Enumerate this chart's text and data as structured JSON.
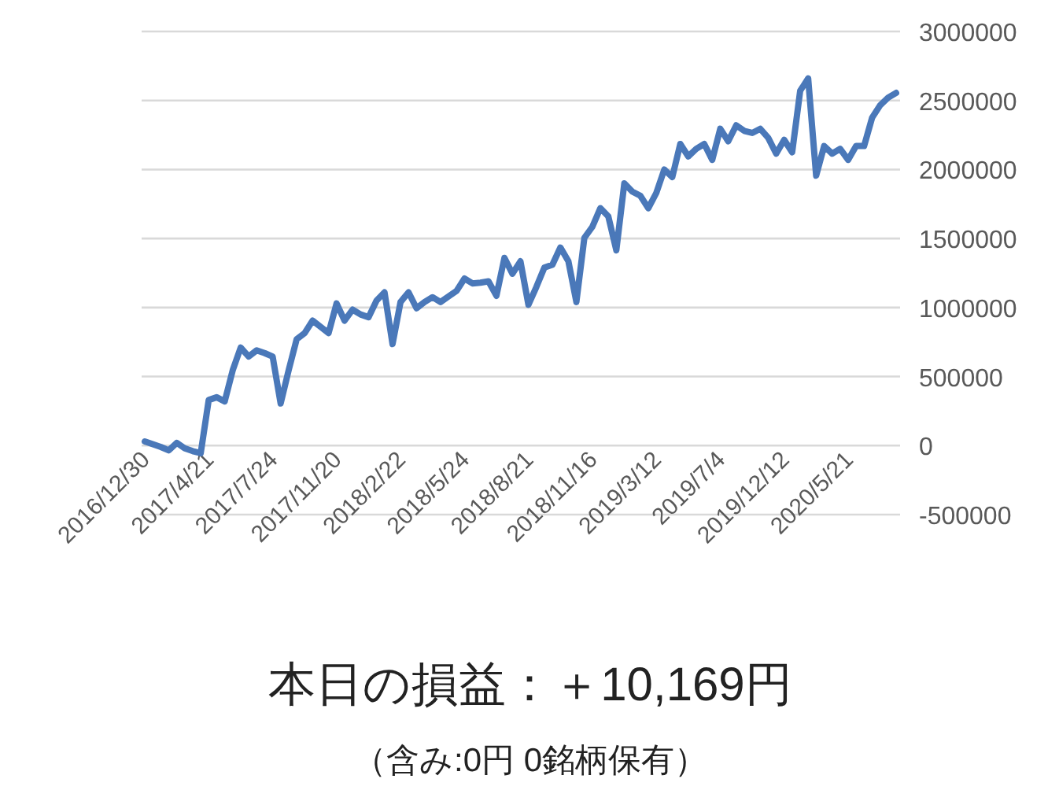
{
  "chart_data": {
    "type": "line",
    "color": "#4a78b9",
    "categories": [
      "2016/12/30",
      null,
      null,
      null,
      null,
      null,
      null,
      null,
      "2017/4/21",
      null,
      null,
      null,
      null,
      null,
      null,
      null,
      "2017/7/24",
      null,
      null,
      null,
      null,
      null,
      null,
      null,
      "2017/11/20",
      null,
      null,
      null,
      null,
      null,
      null,
      null,
      "2018/2/22",
      null,
      null,
      null,
      null,
      null,
      null,
      null,
      "2018/5/24",
      null,
      null,
      null,
      null,
      null,
      null,
      null,
      "2018/8/21",
      null,
      null,
      null,
      null,
      null,
      null,
      null,
      "2018/11/16",
      null,
      null,
      null,
      null,
      null,
      null,
      null,
      "2019/3/12",
      null,
      null,
      null,
      null,
      null,
      null,
      null,
      "2019/7/4",
      null,
      null,
      null,
      null,
      null,
      null,
      null,
      "2019/12/12",
      null,
      null,
      null,
      null,
      null,
      null,
      null,
      "2020/5/21",
      null,
      null,
      null,
      null,
      null,
      null
    ],
    "values": [
      30000,
      10000,
      -10000,
      -35000,
      20000,
      -20000,
      -40000,
      -55000,
      330000,
      350000,
      320000,
      545000,
      710000,
      645000,
      690000,
      670000,
      645000,
      305000,
      545000,
      770000,
      815000,
      905000,
      860000,
      815000,
      1030000,
      905000,
      985000,
      950000,
      930000,
      1050000,
      1110000,
      735000,
      1040000,
      1110000,
      995000,
      1040000,
      1075000,
      1040000,
      1080000,
      1120000,
      1210000,
      1175000,
      1180000,
      1190000,
      1085000,
      1360000,
      1245000,
      1335000,
      1020000,
      1150000,
      1290000,
      1310000,
      1435000,
      1335000,
      1040000,
      1505000,
      1585000,
      1720000,
      1660000,
      1415000,
      1900000,
      1840000,
      1810000,
      1720000,
      1830000,
      2000000,
      1945000,
      2185000,
      2095000,
      2150000,
      2185000,
      2070000,
      2295000,
      2205000,
      2320000,
      2280000,
      2265000,
      2295000,
      2230000,
      2115000,
      2215000,
      2125000,
      2570000,
      2660000,
      1955000,
      2170000,
      2115000,
      2150000,
      2070000,
      2170000,
      2170000,
      2375000,
      2465000,
      2520000,
      2555000
    ],
    "ylim": [
      -500000,
      3000000
    ],
    "yticks": [
      -500000,
      0,
      500000,
      1000000,
      1500000,
      2000000,
      2500000,
      3000000
    ],
    "grid": "y",
    "annotations": [
      "本日の損益：＋10,169円",
      "（含み:0円  0銘柄保有）"
    ]
  }
}
